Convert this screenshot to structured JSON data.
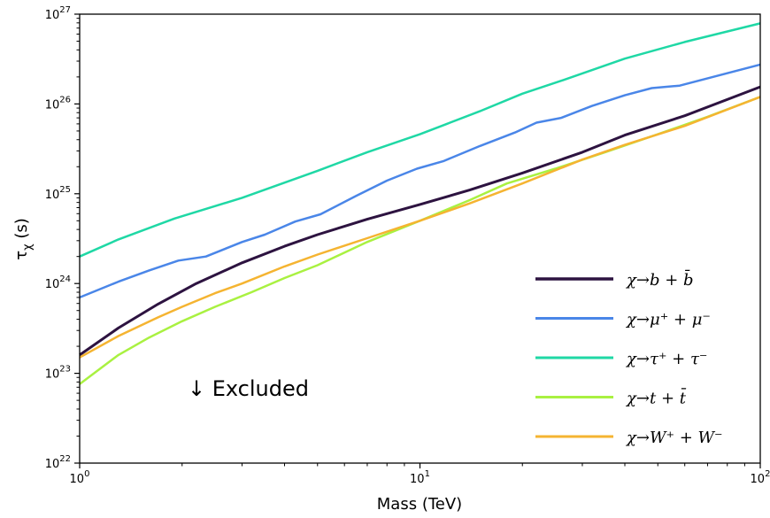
{
  "chart_data": {
    "type": "line",
    "xlabel": "Mass (TeV)",
    "ylabel": "τ_χ (s)",
    "xscale": "log",
    "yscale": "log",
    "xlim": [
      1,
      100
    ],
    "ylim": [
      1e+22,
      1e+27
    ],
    "x_ticks": [
      {
        "value": 1,
        "base": "10",
        "exp": "0"
      },
      {
        "value": 10,
        "base": "10",
        "exp": "1"
      },
      {
        "value": 100,
        "base": "10",
        "exp": "2"
      }
    ],
    "y_ticks": [
      {
        "value": 1e+22,
        "base": "10",
        "exp": "22"
      },
      {
        "value": 1e+23,
        "base": "10",
        "exp": "23"
      },
      {
        "value": 1e+24,
        "base": "10",
        "exp": "24"
      },
      {
        "value": 1e+25,
        "base": "10",
        "exp": "25"
      },
      {
        "value": 1e+26,
        "base": "10",
        "exp": "26"
      },
      {
        "value": 1e+27,
        "base": "10",
        "exp": "27"
      }
    ],
    "grid": false,
    "legend_position": "lower-right",
    "annotation": "↓  Excluded",
    "series": [
      {
        "name": "χ→b + b̄",
        "color": "#2d1340",
        "x": [
          1,
          1.3,
          1.7,
          2.2,
          3,
          4,
          5,
          7,
          10,
          14,
          20,
          30,
          40,
          60,
          100
        ],
        "y": [
          1.6e+23,
          3.2e+23,
          5.9e+23,
          1e+24,
          1.7e+24,
          2.6e+24,
          3.5e+24,
          5.2e+24,
          7.6e+24,
          1.1e+25,
          1.7e+25,
          2.9e+25,
          4.5e+25,
          7.4e+25,
          1.55e+26
        ]
      },
      {
        "name": "χ→μ⁺ + μ⁻",
        "color": "#4a86e8",
        "x": [
          1,
          1.3,
          1.6,
          1.95,
          2.35,
          3,
          3.5,
          4.3,
          5.1,
          6.5,
          8,
          9.8,
          11.7,
          15,
          19,
          22,
          26,
          32,
          40,
          48,
          58,
          100
        ],
        "y": [
          7e+23,
          1.05e+24,
          1.4e+24,
          1.8e+24,
          2e+24,
          2.9e+24,
          3.5e+24,
          4.9e+24,
          5.9e+24,
          9.5e+24,
          1.4e+25,
          1.9e+25,
          2.3e+25,
          3.4e+25,
          4.8e+25,
          6.2e+25,
          7e+25,
          9.5e+25,
          1.25e+26,
          1.5e+26,
          1.6e+26,
          2.75e+26
        ]
      },
      {
        "name": "χ→τ⁺ + τ⁻",
        "color": "#1fd8a5",
        "x": [
          1,
          1.3,
          1.9,
          3,
          5,
          7,
          10,
          12,
          15,
          20,
          27,
          40,
          60,
          100
        ],
        "y": [
          2e+24,
          3.1e+24,
          5.3e+24,
          9e+24,
          1.8e+25,
          2.9e+25,
          4.6e+25,
          6e+25,
          8.3e+25,
          1.3e+26,
          1.9e+26,
          3.2e+26,
          4.9e+26,
          7.9e+26
        ]
      },
      {
        "name": "χ→t + t̄",
        "color": "#a9f141",
        "x": [
          1,
          1.3,
          1.6,
          2,
          2.5,
          3.2,
          4,
          5,
          7,
          10,
          14,
          18,
          25,
          35,
          50,
          70,
          100
        ],
        "y": [
          7.6e+22,
          1.6e+23,
          2.5e+23,
          3.8e+23,
          5.5e+23,
          8e+23,
          1.15e+24,
          1.6e+24,
          2.9e+24,
          5e+24,
          8.5e+24,
          1.3e+25,
          1.9e+25,
          2.9e+25,
          4.6e+25,
          7.2e+25,
          1.2e+26
        ]
      },
      {
        "name": "χ→W⁺ + W⁻",
        "color": "#f5b431",
        "x": [
          1,
          1.3,
          1.7,
          2,
          2.5,
          3,
          4,
          5,
          7,
          10,
          14,
          20,
          30,
          40,
          60,
          100
        ],
        "y": [
          1.5e+23,
          2.6e+23,
          4.2e+23,
          5.5e+23,
          7.8e+23,
          1e+24,
          1.55e+24,
          2.1e+24,
          3.2e+24,
          5e+24,
          7.8e+24,
          1.3e+25,
          2.4e+25,
          3.5e+25,
          5.7e+25,
          1.2e+26
        ]
      }
    ]
  }
}
